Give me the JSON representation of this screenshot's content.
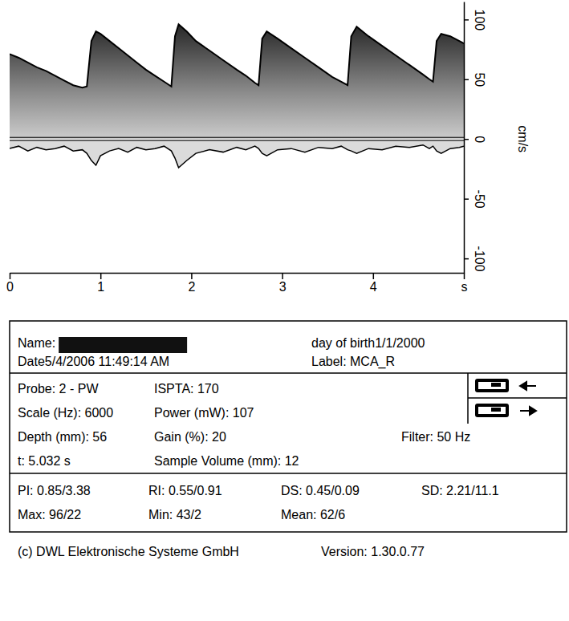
{
  "chart_data": {
    "type": "area",
    "x": [
      0,
      0.1,
      0.2,
      0.3,
      0.4,
      0.5,
      0.6,
      0.7,
      0.8,
      0.85,
      0.9,
      0.95,
      1.0,
      1.1,
      1.2,
      1.3,
      1.4,
      1.5,
      1.6,
      1.7,
      1.78,
      1.82,
      1.86,
      1.95,
      2.05,
      2.2,
      2.35,
      2.5,
      2.6,
      2.7,
      2.74,
      2.78,
      2.83,
      2.95,
      3.1,
      3.25,
      3.4,
      3.55,
      3.65,
      3.72,
      3.76,
      3.82,
      3.95,
      4.1,
      4.25,
      4.4,
      4.55,
      4.62,
      4.66,
      4.7,
      4.75,
      4.85,
      4.95,
      5.0
    ],
    "series": [
      {
        "type": "area",
        "color": "#000000",
        "values": [
          71,
          68,
          64,
          60,
          57,
          53,
          49,
          45,
          43,
          44,
          82,
          90,
          88,
          82,
          76,
          70,
          64,
          58,
          53,
          48,
          44,
          86,
          96,
          90,
          82,
          74,
          66,
          58,
          53,
          47,
          45,
          84,
          90,
          84,
          76,
          68,
          60,
          52,
          48,
          45,
          86,
          94,
          86,
          78,
          70,
          62,
          54,
          50,
          48,
          82,
          88,
          86,
          82,
          80
        ]
      },
      {
        "type": "line",
        "color": "#000000",
        "values": [
          -8,
          -6,
          -10,
          -7,
          -9,
          -8,
          -6,
          -10,
          -9,
          -12,
          -18,
          -22,
          -14,
          -10,
          -8,
          -11,
          -7,
          -9,
          -8,
          -6,
          -10,
          -16,
          -24,
          -18,
          -12,
          -9,
          -11,
          -7,
          -9,
          -6,
          -8,
          -12,
          -14,
          -9,
          -8,
          -11,
          -7,
          -8,
          -6,
          -9,
          -10,
          -12,
          -8,
          -9,
          -6,
          -7,
          -5,
          -8,
          -6,
          -10,
          -12,
          -8,
          -7,
          -6
        ]
      }
    ],
    "xlim": [
      0,
      5
    ],
    "xticks": [
      0,
      1,
      2,
      3,
      4,
      {
        "value": 5,
        "label": "s"
      }
    ],
    "ylim": [
      -112,
      115
    ],
    "yticks": [
      100,
      50,
      0,
      -50,
      -100
    ],
    "y_label": "cm/s",
    "grid": false
  },
  "panel": {
    "name_label": "Name:",
    "day_of_birth": "day of birth1/1/2000",
    "date": "Date5/4/2006 11:49:14 AM",
    "label": "Label: MCA_R",
    "settings": [
      [
        "Probe: 2 - PW",
        "ISPTA: 170"
      ],
      [
        "Scale (Hz): 6000",
        "Power (mW): 107"
      ],
      [
        "Depth (mm): 56",
        "Gain (%): 20",
        "Filter: 50 Hz"
      ],
      [
        "t: 5.032 s",
        "Sample Volume (mm): 12"
      ]
    ],
    "indices": [
      [
        "PI: 0.85/3.38",
        "RI: 0.55/0.91",
        "DS: 0.45/0.09",
        "SD: 2.21/11.1"
      ],
      [
        "Max: 96/22",
        "Min: 43/2",
        "Mean: 62/6"
      ]
    ]
  },
  "footer": {
    "copyright": "(c) DWL Elektronische Systeme GmbH",
    "version": "Version: 1.30.0.77"
  }
}
